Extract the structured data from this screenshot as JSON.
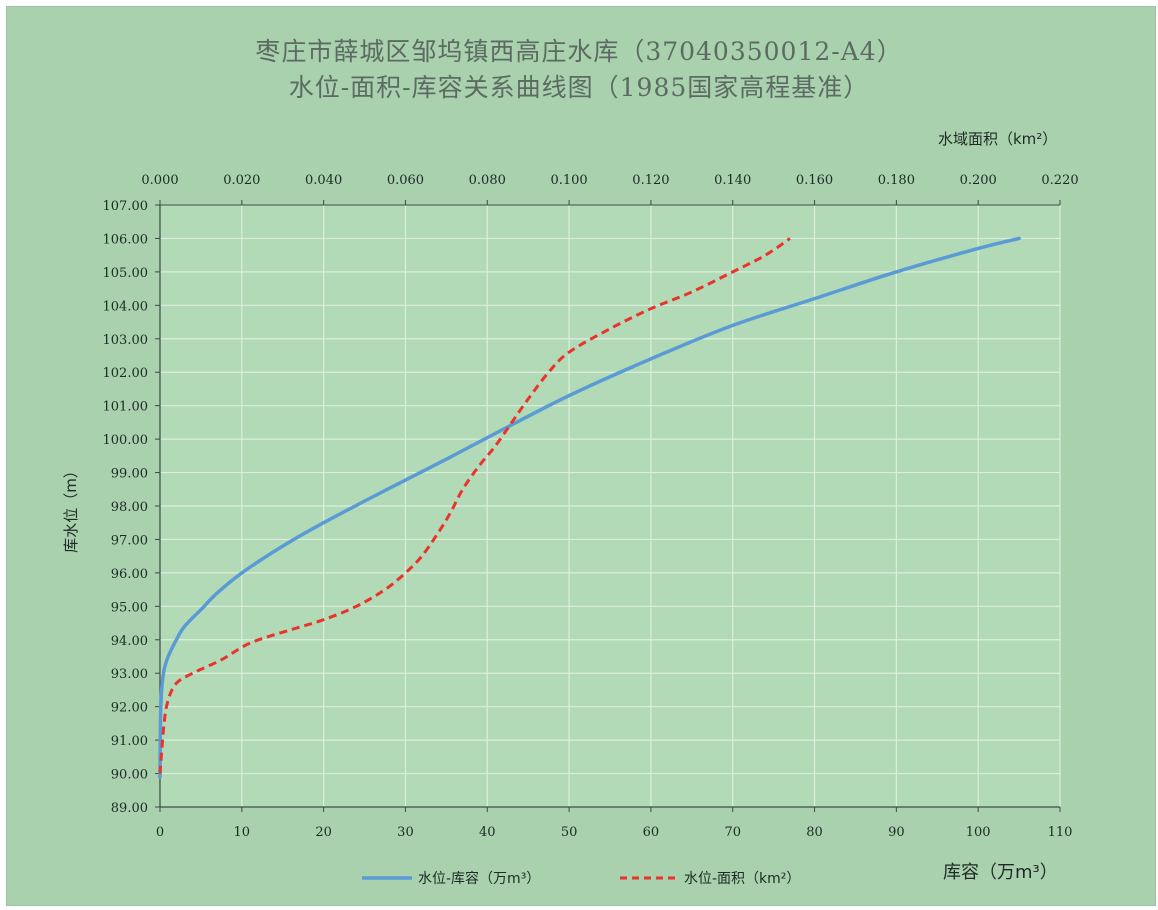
{
  "chart_data": {
    "type": "line",
    "title_line1": "枣庄市薛城区邹坞镇西高庄水库（37040350012-A4）",
    "title_line2": "水位-面积-库容关系曲线图（1985国家高程基准）",
    "ylabel": "库水位（m）",
    "xlabel_bottom": "库容（万m³）",
    "xlabel_top": "水域面积（km²）",
    "y_ticks": [
      "107.00",
      "106.00",
      "105.00",
      "104.00",
      "103.00",
      "102.00",
      "101.00",
      "100.00",
      "99.00",
      "98.00",
      "97.00",
      "96.00",
      "95.00",
      "94.00",
      "93.00",
      "92.00",
      "91.00",
      "90.00",
      "89.00"
    ],
    "ylim": [
      89,
      107
    ],
    "x_bottom_ticks": [
      "0",
      "10",
      "20",
      "30",
      "40",
      "50",
      "60",
      "70",
      "80",
      "90",
      "100",
      "110"
    ],
    "x_bottom_lim": [
      0,
      110
    ],
    "x_top_ticks": [
      "0.000",
      "0.020",
      "0.040",
      "0.060",
      "0.080",
      "0.100",
      "0.120",
      "0.140",
      "0.160",
      "0.180",
      "0.200",
      "0.220"
    ],
    "x_top_lim": [
      0,
      0.22
    ],
    "grid": true,
    "legend_position": "bottom",
    "series": [
      {
        "name": "水位-库容（万m³）",
        "axis": "bottom",
        "color": "#5b9bd5",
        "dash": "solid",
        "x": [
          0,
          0.05,
          0.2,
          0.5,
          1,
          2,
          3,
          5,
          7,
          10,
          15,
          20,
          27,
          35,
          42,
          50,
          60,
          70,
          80,
          90,
          100,
          105
        ],
        "y": [
          89.9,
          91.5,
          92.5,
          93.1,
          93.5,
          94.0,
          94.4,
          94.9,
          95.4,
          96.0,
          96.8,
          97.5,
          98.4,
          99.4,
          100.3,
          101.3,
          102.4,
          103.4,
          104.2,
          105.0,
          105.7,
          106.0
        ]
      },
      {
        "name": "水位-面积（km²）",
        "axis": "top",
        "color": "#e8342c",
        "dash": "dashed",
        "x": [
          0,
          0.001,
          0.002,
          0.004,
          0.008,
          0.015,
          0.022,
          0.032,
          0.04,
          0.048,
          0.055,
          0.06,
          0.064,
          0.068,
          0.071,
          0.074,
          0.078,
          0.082,
          0.086,
          0.09,
          0.095,
          0.1,
          0.11,
          0.12,
          0.13,
          0.14,
          0.148,
          0.154
        ],
        "y": [
          90.0,
          91.5,
          92.2,
          92.7,
          93.0,
          93.4,
          93.9,
          94.3,
          94.6,
          95.0,
          95.5,
          96.0,
          96.5,
          97.2,
          97.8,
          98.5,
          99.2,
          99.8,
          100.5,
          101.2,
          102.0,
          102.6,
          103.3,
          103.9,
          104.4,
          105.0,
          105.5,
          106.0
        ]
      }
    ]
  }
}
